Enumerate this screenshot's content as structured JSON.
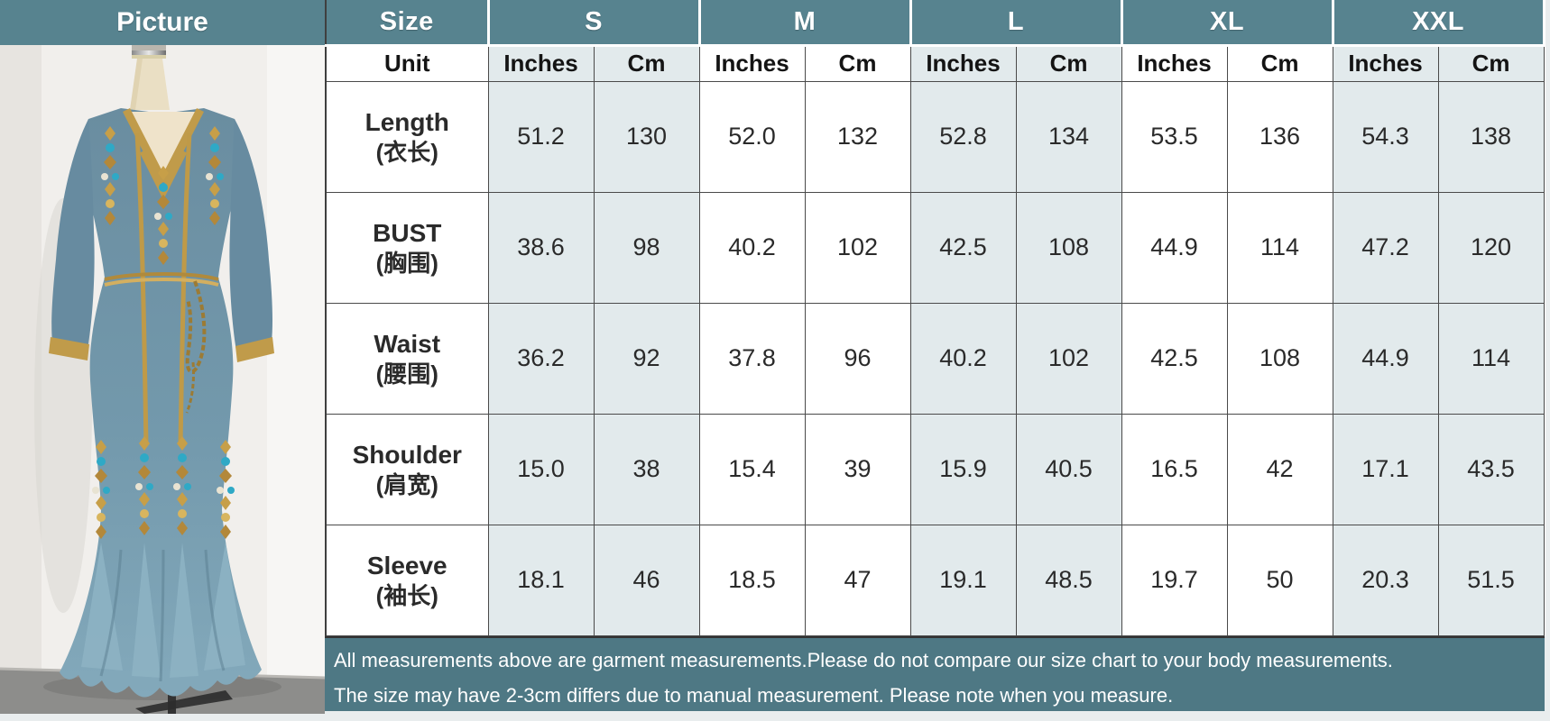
{
  "picture": {
    "header": "Picture"
  },
  "table": {
    "size_header": "Size",
    "unit_label": "Unit",
    "sizes": [
      "S",
      "M",
      "L",
      "XL",
      "XXL"
    ],
    "unit_columns": [
      "Inches",
      "Cm"
    ],
    "rows": [
      {
        "label_en": "Length",
        "label_zh": "(衣长)",
        "values": [
          [
            "51.2",
            "130"
          ],
          [
            "52.0",
            "132"
          ],
          [
            "52.8",
            "134"
          ],
          [
            "53.5",
            "136"
          ],
          [
            "54.3",
            "138"
          ]
        ]
      },
      {
        "label_en": "BUST",
        "label_zh": "(胸围)",
        "values": [
          [
            "38.6",
            "98"
          ],
          [
            "40.2",
            "102"
          ],
          [
            "42.5",
            "108"
          ],
          [
            "44.9",
            "114"
          ],
          [
            "47.2",
            "120"
          ]
        ]
      },
      {
        "label_en": "Waist",
        "label_zh": "(腰围)",
        "values": [
          [
            "36.2",
            "92"
          ],
          [
            "37.8",
            "96"
          ],
          [
            "40.2",
            "102"
          ],
          [
            "42.5",
            "108"
          ],
          [
            "44.9",
            "114"
          ]
        ]
      },
      {
        "label_en": "Shoulder",
        "label_zh": "(肩宽)",
        "values": [
          [
            "15.0",
            "38"
          ],
          [
            "15.4",
            "39"
          ],
          [
            "15.9",
            "40.5"
          ],
          [
            "16.5",
            "42"
          ],
          [
            "17.1",
            "43.5"
          ]
        ]
      },
      {
        "label_en": "Sleeve",
        "label_zh": "(袖长)",
        "values": [
          [
            "18.1",
            "46"
          ],
          [
            "18.5",
            "47"
          ],
          [
            "19.1",
            "48.5"
          ],
          [
            "19.7",
            "50"
          ],
          [
            "20.3",
            "51.5"
          ]
        ]
      }
    ],
    "notes": [
      "All measurements above are garment measurements.Please do not compare our size chart to your body measurements.",
      "The size may have 2-3cm differs due to manual measurement. Please note when you measure."
    ]
  },
  "colors": {
    "header_teal": "#57838F",
    "notes_teal": "#4E7884",
    "shaded_cell": "#E2EAEC",
    "border_dark": "#3F3F3F",
    "dress_blue": "#6E91A4",
    "dress_blue_light": "#83A9BB",
    "gold_trim": "#C09B4A",
    "gem_teal": "#2FA9C6"
  }
}
